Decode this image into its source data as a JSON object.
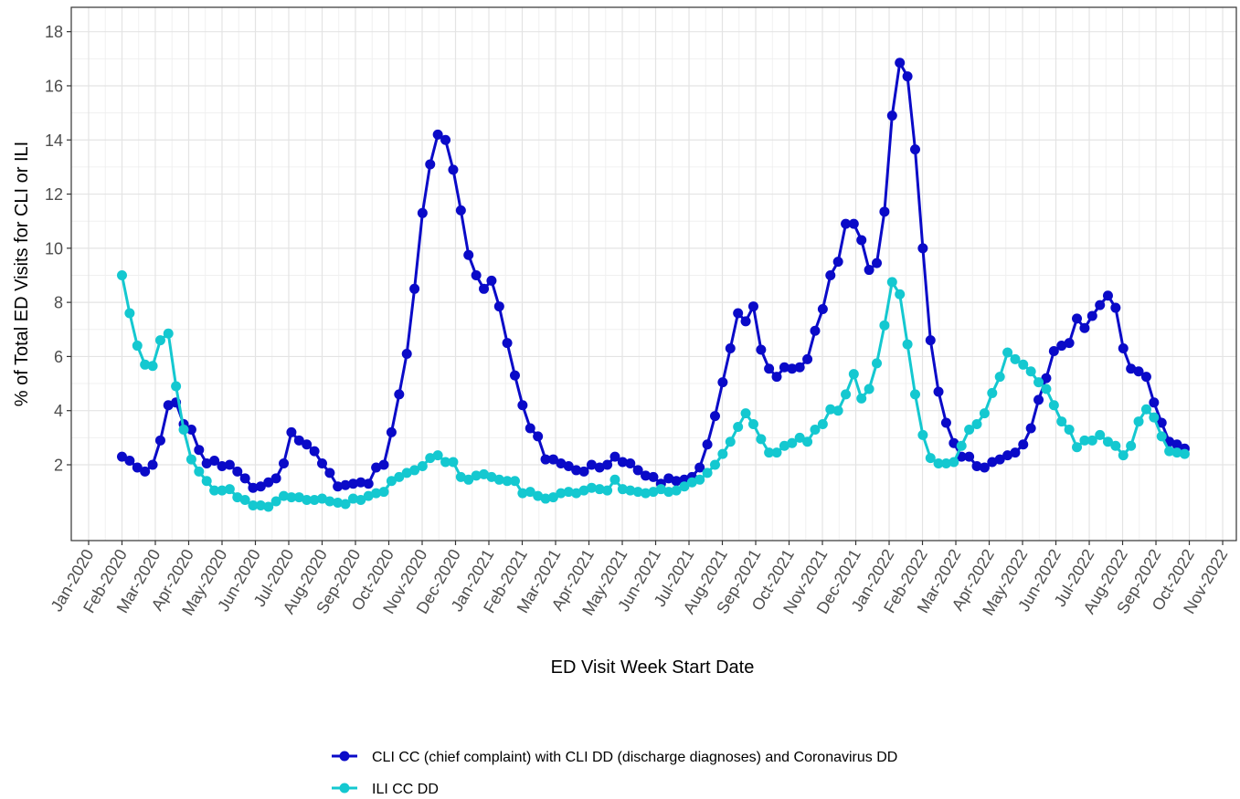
{
  "chart_data": {
    "type": "line",
    "xlabel": "ED Visit Week Start Date",
    "ylabel": "% of Total ED Visits for CLI or ILI",
    "x": [
      1.0,
      1.23,
      1.46,
      1.69,
      1.92,
      2.15,
      2.39,
      2.62,
      2.85,
      3.08,
      3.31,
      3.54,
      3.77,
      4.0,
      4.23,
      4.46,
      4.69,
      4.93,
      5.16,
      5.39,
      5.62,
      5.85,
      6.08,
      6.31,
      6.54,
      6.77,
      7.0,
      7.23,
      7.47,
      7.7,
      7.93,
      8.16,
      8.39,
      8.62,
      8.85,
      9.08,
      9.31,
      9.54,
      9.77,
      10.01,
      10.24,
      10.47,
      10.7,
      10.93,
      11.16,
      11.39,
      11.62,
      11.85,
      12.08,
      12.31,
      12.55,
      12.78,
      13.01,
      13.24,
      13.47,
      13.7,
      13.93,
      14.16,
      14.39,
      14.62,
      14.85,
      15.08,
      15.32,
      15.55,
      15.78,
      16.01,
      16.24,
      16.47,
      16.7,
      16.93,
      17.16,
      17.39,
      17.62,
      17.86,
      18.09,
      18.32,
      18.55,
      18.78,
      19.01,
      19.24,
      19.47,
      19.7,
      19.93,
      20.16,
      20.4,
      20.63,
      20.86,
      21.09,
      21.32,
      21.55,
      21.78,
      22.01,
      22.24,
      22.47,
      22.7,
      22.94,
      23.17,
      23.4,
      23.63,
      23.86,
      24.09,
      24.32,
      24.55,
      24.78,
      25.01,
      25.24,
      25.48,
      25.71,
      25.94,
      26.17,
      26.4,
      26.63,
      26.86,
      27.09,
      27.32,
      27.55,
      27.78,
      28.02,
      28.25,
      28.48,
      28.71,
      28.94,
      29.17,
      29.4,
      29.63,
      29.86,
      30.09,
      30.32,
      30.56,
      30.79,
      31.02,
      31.25,
      31.48,
      31.71,
      31.94,
      32.17,
      32.4,
      32.63,
      32.86
    ],
    "series": [
      {
        "name": "CLI CC (chief complaint) with CLI DD (discharge diagnoses) and Coronavirus DD",
        "color": "#0a0ac8",
        "values": [
          2.3,
          2.15,
          1.9,
          1.75,
          2.0,
          2.9,
          4.2,
          4.3,
          3.5,
          3.3,
          2.55,
          2.05,
          2.15,
          1.95,
          2.0,
          1.75,
          1.5,
          1.15,
          1.2,
          1.35,
          1.5,
          2.05,
          3.2,
          2.9,
          2.75,
          2.5,
          2.05,
          1.7,
          1.2,
          1.25,
          1.3,
          1.35,
          1.3,
          1.9,
          2.0,
          3.2,
          4.6,
          6.1,
          8.5,
          11.3,
          13.1,
          14.2,
          14.0,
          12.9,
          11.4,
          9.75,
          9.0,
          8.5,
          8.8,
          7.85,
          6.5,
          5.3,
          4.2,
          3.35,
          3.05,
          2.2,
          2.2,
          2.05,
          1.95,
          1.8,
          1.75,
          2.0,
          1.9,
          2.0,
          2.3,
          2.1,
          2.05,
          1.8,
          1.6,
          1.55,
          1.3,
          1.5,
          1.4,
          1.45,
          1.55,
          1.9,
          2.75,
          3.8,
          5.05,
          6.3,
          7.6,
          7.3,
          7.85,
          6.25,
          5.55,
          5.25,
          5.6,
          5.55,
          5.6,
          5.9,
          6.95,
          7.75,
          9.0,
          9.5,
          10.9,
          10.9,
          10.3,
          9.2,
          9.45,
          11.35,
          14.9,
          16.85,
          16.35,
          13.65,
          10.0,
          6.6,
          4.7,
          3.55,
          2.8,
          2.3,
          2.3,
          1.95,
          1.9,
          2.1,
          2.2,
          2.35,
          2.45,
          2.75,
          3.35,
          4.4,
          5.2,
          6.2,
          6.4,
          6.5,
          7.4,
          7.05,
          7.5,
          7.9,
          8.25,
          7.8,
          6.3,
          5.55,
          5.45,
          5.25,
          4.3,
          3.55,
          2.85,
          2.75,
          2.6
        ]
      },
      {
        "name": "ILI CC DD",
        "color": "#14c8d0",
        "values": [
          9.0,
          7.6,
          6.4,
          5.7,
          5.65,
          6.6,
          6.85,
          4.9,
          3.3,
          2.2,
          1.75,
          1.4,
          1.05,
          1.05,
          1.1,
          0.8,
          0.7,
          0.5,
          0.5,
          0.45,
          0.65,
          0.85,
          0.8,
          0.8,
          0.7,
          0.7,
          0.75,
          0.65,
          0.6,
          0.55,
          0.75,
          0.7,
          0.85,
          0.95,
          1.0,
          1.4,
          1.55,
          1.7,
          1.8,
          1.95,
          2.25,
          2.35,
          2.1,
          2.1,
          1.55,
          1.45,
          1.6,
          1.65,
          1.55,
          1.45,
          1.4,
          1.4,
          0.95,
          1.0,
          0.85,
          0.75,
          0.8,
          0.95,
          1.0,
          0.95,
          1.05,
          1.15,
          1.1,
          1.05,
          1.45,
          1.1,
          1.05,
          1.0,
          0.95,
          1.0,
          1.1,
          1.0,
          1.05,
          1.2,
          1.35,
          1.45,
          1.7,
          2.0,
          2.4,
          2.85,
          3.4,
          3.9,
          3.5,
          2.95,
          2.45,
          2.45,
          2.7,
          2.8,
          3.0,
          2.85,
          3.3,
          3.5,
          4.05,
          4.0,
          4.6,
          5.35,
          4.45,
          4.8,
          5.75,
          7.15,
          8.75,
          8.3,
          6.45,
          4.6,
          3.1,
          2.25,
          2.05,
          2.05,
          2.1,
          2.7,
          3.3,
          3.5,
          3.9,
          4.65,
          5.25,
          6.15,
          5.9,
          5.7,
          5.45,
          5.05,
          4.8,
          4.2,
          3.6,
          3.3,
          2.65,
          2.9,
          2.9,
          3.1,
          2.85,
          2.7,
          2.35,
          2.7,
          3.6,
          4.05,
          3.75,
          3.05,
          2.5,
          2.45,
          2.4
        ]
      }
    ],
    "xlim": [
      -0.52,
      34.41
    ],
    "xticks": [
      {
        "value": 0,
        "label": "Jan-2020"
      },
      {
        "value": 1,
        "label": "Feb-2020"
      },
      {
        "value": 2,
        "label": "Mar-2020"
      },
      {
        "value": 3,
        "label": "Apr-2020"
      },
      {
        "value": 4,
        "label": "May-2020"
      },
      {
        "value": 5,
        "label": "Jun-2020"
      },
      {
        "value": 6,
        "label": "Jul-2020"
      },
      {
        "value": 7,
        "label": "Aug-2020"
      },
      {
        "value": 8,
        "label": "Sep-2020"
      },
      {
        "value": 9,
        "label": "Oct-2020"
      },
      {
        "value": 10,
        "label": "Nov-2020"
      },
      {
        "value": 11,
        "label": "Dec-2020"
      },
      {
        "value": 12,
        "label": "Jan-2021"
      },
      {
        "value": 13,
        "label": "Feb-2021"
      },
      {
        "value": 14,
        "label": "Mar-2021"
      },
      {
        "value": 15,
        "label": "Apr-2021"
      },
      {
        "value": 16,
        "label": "May-2021"
      },
      {
        "value": 17,
        "label": "Jun-2021"
      },
      {
        "value": 18,
        "label": "Jul-2021"
      },
      {
        "value": 19,
        "label": "Aug-2021"
      },
      {
        "value": 20,
        "label": "Sep-2021"
      },
      {
        "value": 21,
        "label": "Oct-2021"
      },
      {
        "value": 22,
        "label": "Nov-2021"
      },
      {
        "value": 23,
        "label": "Dec-2021"
      },
      {
        "value": 24,
        "label": "Jan-2022"
      },
      {
        "value": 25,
        "label": "Feb-2022"
      },
      {
        "value": 26,
        "label": "Mar-2022"
      },
      {
        "value": 27,
        "label": "Apr-2022"
      },
      {
        "value": 28,
        "label": "May-2022"
      },
      {
        "value": 29,
        "label": "Jun-2022"
      },
      {
        "value": 30,
        "label": "Jul-2022"
      },
      {
        "value": 31,
        "label": "Aug-2022"
      },
      {
        "value": 32,
        "label": "Sep-2022"
      },
      {
        "value": 33,
        "label": "Oct-2022"
      },
      {
        "value": 34,
        "label": "Nov-2022"
      }
    ],
    "ylim": [
      -0.8,
      18.9
    ],
    "yticks": [
      2,
      4,
      6,
      8,
      10,
      12,
      14,
      16,
      18
    ],
    "grid": true,
    "legend": "bottom"
  }
}
